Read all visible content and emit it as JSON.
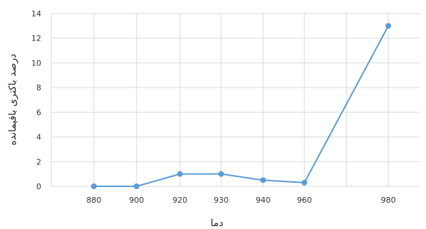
{
  "chart_data": {
    "type": "line",
    "x": [
      880,
      900,
      920,
      930,
      940,
      960,
      980
    ],
    "x_tick_labels": [
      "880",
      "900",
      "920",
      "930",
      "940",
      "960",
      "980"
    ],
    "y": [
      0,
      0,
      1,
      1,
      0.5,
      0.3,
      13
    ],
    "y_tick_labels": [
      "0",
      "2",
      "4",
      "6",
      "8",
      "10",
      "12",
      "14"
    ],
    "ylim": [
      0,
      14
    ],
    "xlabel": "دما",
    "ylabel": "درصد باکتری باقیمانده",
    "grid": true,
    "legend": "none",
    "line_color": "#5b9bd5",
    "grid_color": "#d9d9d9"
  }
}
